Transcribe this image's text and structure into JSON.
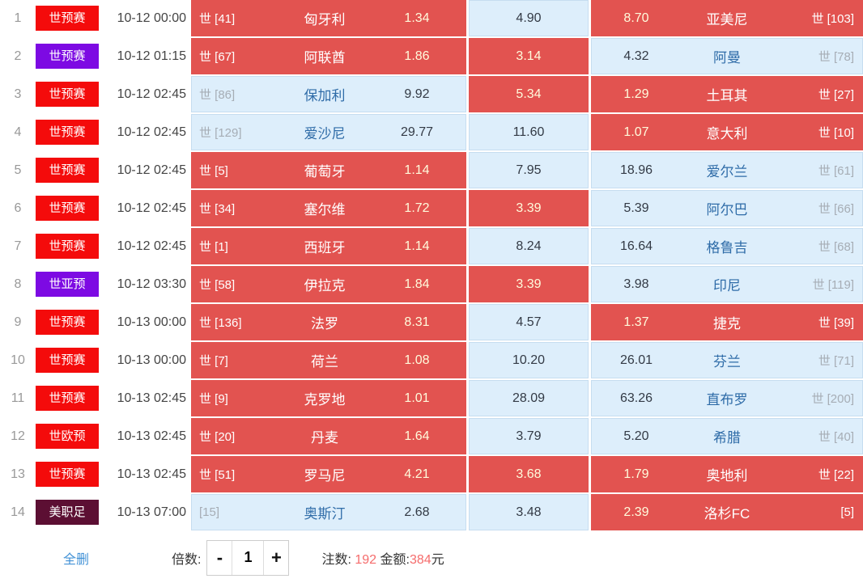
{
  "colors": {
    "badge": {
      "red": "#f40b0b",
      "purple": "#7d0ae3",
      "maroon": "#5c0f33"
    },
    "selected_cell": "#e25350",
    "unselected_cell": "#ddeefb",
    "accent_red_text": "#f56c6c",
    "link_blue": "#4292d6"
  },
  "footer": {
    "delete_all": "全删",
    "multiplier_label": "倍数:",
    "minus": "-",
    "multiplier_value": "1",
    "plus": "+",
    "bets_label": "注数:",
    "bets_count": "192",
    "amount_label": "金额:",
    "amount_value": "384",
    "amount_unit": "元"
  },
  "matches": [
    {
      "no": "1",
      "league": "世预赛",
      "badge_color": "red",
      "time": "10-12 00:00",
      "home": {
        "rank": "世 [41]",
        "team": "匈牙利",
        "odds": "1.34",
        "selected": true
      },
      "draw": {
        "odds": "4.90",
        "selected": false
      },
      "away": {
        "odds": "8.70",
        "team": "亚美尼",
        "rank": "世 [103]",
        "selected": true
      }
    },
    {
      "no": "2",
      "league": "世预赛",
      "badge_color": "purple",
      "time": "10-12 01:15",
      "home": {
        "rank": "世 [67]",
        "team": "阿联酋",
        "odds": "1.86",
        "selected": true
      },
      "draw": {
        "odds": "3.14",
        "selected": true
      },
      "away": {
        "odds": "4.32",
        "team": "阿曼",
        "rank": "世 [78]",
        "selected": false
      }
    },
    {
      "no": "3",
      "league": "世预赛",
      "badge_color": "red",
      "time": "10-12 02:45",
      "home": {
        "rank": "世 [86]",
        "team": "保加利",
        "odds": "9.92",
        "selected": false
      },
      "draw": {
        "odds": "5.34",
        "selected": true
      },
      "away": {
        "odds": "1.29",
        "team": "土耳其",
        "rank": "世 [27]",
        "selected": true
      }
    },
    {
      "no": "4",
      "league": "世预赛",
      "badge_color": "red",
      "time": "10-12 02:45",
      "home": {
        "rank": "世 [129]",
        "team": "爱沙尼",
        "odds": "29.77",
        "selected": false
      },
      "draw": {
        "odds": "11.60",
        "selected": false
      },
      "away": {
        "odds": "1.07",
        "team": "意大利",
        "rank": "世 [10]",
        "selected": true
      }
    },
    {
      "no": "5",
      "league": "世预赛",
      "badge_color": "red",
      "time": "10-12 02:45",
      "home": {
        "rank": "世 [5]",
        "team": "葡萄牙",
        "odds": "1.14",
        "selected": true
      },
      "draw": {
        "odds": "7.95",
        "selected": false
      },
      "away": {
        "odds": "18.96",
        "team": "爱尔兰",
        "rank": "世 [61]",
        "selected": false
      }
    },
    {
      "no": "6",
      "league": "世预赛",
      "badge_color": "red",
      "time": "10-12 02:45",
      "home": {
        "rank": "世 [34]",
        "team": "塞尔维",
        "odds": "1.72",
        "selected": true
      },
      "draw": {
        "odds": "3.39",
        "selected": true
      },
      "away": {
        "odds": "5.39",
        "team": "阿尔巴",
        "rank": "世 [66]",
        "selected": false
      }
    },
    {
      "no": "7",
      "league": "世预赛",
      "badge_color": "red",
      "time": "10-12 02:45",
      "home": {
        "rank": "世 [1]",
        "team": "西班牙",
        "odds": "1.14",
        "selected": true
      },
      "draw": {
        "odds": "8.24",
        "selected": false
      },
      "away": {
        "odds": "16.64",
        "team": "格鲁吉",
        "rank": "世 [68]",
        "selected": false
      }
    },
    {
      "no": "8",
      "league": "世亚预",
      "badge_color": "purple",
      "time": "10-12 03:30",
      "home": {
        "rank": "世 [58]",
        "team": "伊拉克",
        "odds": "1.84",
        "selected": true
      },
      "draw": {
        "odds": "3.39",
        "selected": true
      },
      "away": {
        "odds": "3.98",
        "team": "印尼",
        "rank": "世 [119]",
        "selected": false
      }
    },
    {
      "no": "9",
      "league": "世预赛",
      "badge_color": "red",
      "time": "10-13 00:00",
      "home": {
        "rank": "世 [136]",
        "team": "法罗",
        "odds": "8.31",
        "selected": true
      },
      "draw": {
        "odds": "4.57",
        "selected": false
      },
      "away": {
        "odds": "1.37",
        "team": "捷克",
        "rank": "世 [39]",
        "selected": true
      }
    },
    {
      "no": "10",
      "league": "世预赛",
      "badge_color": "red",
      "time": "10-13 00:00",
      "home": {
        "rank": "世 [7]",
        "team": "荷兰",
        "odds": "1.08",
        "selected": true
      },
      "draw": {
        "odds": "10.20",
        "selected": false
      },
      "away": {
        "odds": "26.01",
        "team": "芬兰",
        "rank": "世 [71]",
        "selected": false
      }
    },
    {
      "no": "11",
      "league": "世预赛",
      "badge_color": "red",
      "time": "10-13 02:45",
      "home": {
        "rank": "世 [9]",
        "team": "克罗地",
        "odds": "1.01",
        "selected": true
      },
      "draw": {
        "odds": "28.09",
        "selected": false
      },
      "away": {
        "odds": "63.26",
        "team": "直布罗",
        "rank": "世 [200]",
        "selected": false
      }
    },
    {
      "no": "12",
      "league": "世欧预",
      "badge_color": "red",
      "time": "10-13 02:45",
      "home": {
        "rank": "世 [20]",
        "team": "丹麦",
        "odds": "1.64",
        "selected": true
      },
      "draw": {
        "odds": "3.79",
        "selected": false
      },
      "away": {
        "odds": "5.20",
        "team": "希腊",
        "rank": "世 [40]",
        "selected": false
      }
    },
    {
      "no": "13",
      "league": "世预赛",
      "badge_color": "red",
      "time": "10-13 02:45",
      "home": {
        "rank": "世 [51]",
        "team": "罗马尼",
        "odds": "4.21",
        "selected": true
      },
      "draw": {
        "odds": "3.68",
        "selected": true
      },
      "away": {
        "odds": "1.79",
        "team": "奥地利",
        "rank": "世 [22]",
        "selected": true
      }
    },
    {
      "no": "14",
      "league": "美职足",
      "badge_color": "maroon",
      "time": "10-13 07:00",
      "home": {
        "rank": "[15]",
        "team": "奥斯汀",
        "odds": "2.68",
        "selected": false
      },
      "draw": {
        "odds": "3.48",
        "selected": false
      },
      "away": {
        "odds": "2.39",
        "team": "洛杉FC",
        "rank": "[5]",
        "selected": true
      }
    }
  ]
}
